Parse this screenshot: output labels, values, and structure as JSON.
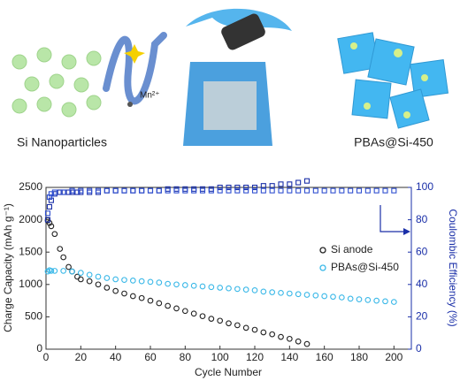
{
  "illustration": {
    "left_label": "Si Nanoparticles",
    "ion_label": "Mn²⁺",
    "right_label": "PBAs@Si-450"
  },
  "chart_data": {
    "type": "scatter",
    "xlabel": "Cycle Number",
    "ylabel": "Charge Capacity (mAh g⁻¹)",
    "y2label": "Coulombic Efficiency (%)",
    "xlim": [
      0,
      210
    ],
    "xticks": [
      0,
      20,
      40,
      60,
      80,
      100,
      120,
      140,
      160,
      180,
      200
    ],
    "ylim": [
      0,
      2500
    ],
    "yticks": [
      0,
      500,
      1000,
      1500,
      2000,
      2500
    ],
    "y2lim": [
      0,
      100
    ],
    "y2ticks": [
      0,
      20,
      40,
      60,
      80,
      100
    ],
    "legend": "right",
    "series": [
      {
        "name": "Si anode",
        "color": "#222222",
        "marker": "circle",
        "x": [
          1,
          2,
          3,
          5,
          8,
          10,
          13,
          15,
          18,
          20,
          25,
          30,
          35,
          40,
          45,
          50,
          55,
          60,
          65,
          70,
          75,
          80,
          85,
          90,
          95,
          100,
          105,
          110,
          115,
          120,
          125,
          130,
          135,
          140,
          145,
          150
        ],
        "values": [
          1990,
          1950,
          1900,
          1780,
          1550,
          1420,
          1270,
          1200,
          1120,
          1080,
          1050,
          1000,
          950,
          900,
          860,
          820,
          790,
          750,
          710,
          670,
          630,
          590,
          550,
          510,
          470,
          440,
          400,
          370,
          330,
          300,
          260,
          230,
          190,
          160,
          120,
          80
        ]
      },
      {
        "name": "PBAs@Si-450",
        "color": "#3ab8e8",
        "marker": "circle",
        "x": [
          1,
          2,
          3,
          5,
          10,
          15,
          20,
          25,
          30,
          35,
          40,
          45,
          50,
          55,
          60,
          65,
          70,
          75,
          80,
          85,
          90,
          95,
          100,
          105,
          110,
          115,
          120,
          125,
          130,
          135,
          140,
          145,
          150,
          155,
          160,
          165,
          170,
          175,
          180,
          185,
          190,
          195,
          200
        ],
        "values": [
          1200,
          1220,
          1210,
          1210,
          1210,
          1200,
          1180,
          1150,
          1120,
          1100,
          1080,
          1070,
          1060,
          1050,
          1040,
          1030,
          1010,
          1000,
          990,
          980,
          970,
          960,
          950,
          940,
          930,
          920,
          910,
          890,
          880,
          870,
          860,
          850,
          840,
          830,
          820,
          810,
          800,
          780,
          770,
          760,
          750,
          740,
          730
        ]
      },
      {
        "color": "#1a2fa8",
        "marker": "square",
        "axis": "y2",
        "x": [
          1,
          2,
          3,
          5,
          8,
          10,
          13,
          15,
          18,
          20,
          25,
          30,
          35,
          40,
          45,
          50,
          55,
          60,
          65,
          70,
          75,
          80,
          85,
          90,
          95,
          100,
          105,
          110,
          115,
          120,
          125,
          130,
          135,
          140,
          145,
          150
        ],
        "values": [
          80,
          88,
          92,
          96,
          97,
          97,
          97,
          97,
          97,
          97,
          97,
          97,
          98,
          98,
          98,
          98,
          98,
          98,
          98,
          99,
          99,
          99,
          99,
          99,
          99,
          100,
          100,
          100,
          100,
          100,
          101,
          101,
          102,
          102,
          103,
          104
        ]
      },
      {
        "color": "#3050d0",
        "marker": "square",
        "axis": "y2",
        "x": [
          1,
          2,
          3,
          5,
          10,
          15,
          20,
          25,
          30,
          35,
          40,
          45,
          50,
          55,
          60,
          65,
          70,
          75,
          80,
          85,
          90,
          95,
          100,
          105,
          110,
          115,
          120,
          125,
          130,
          135,
          140,
          145,
          150,
          155,
          160,
          165,
          170,
          175,
          180,
          185,
          190,
          195,
          200
        ],
        "values": [
          84,
          94,
          96,
          97,
          97,
          98,
          98,
          98,
          98,
          98,
          98,
          98,
          98,
          98,
          98,
          98,
          98,
          98,
          98,
          98,
          98,
          98,
          98,
          98,
          98,
          98,
          98,
          98,
          98,
          98,
          98,
          98,
          98,
          98,
          98,
          98,
          98,
          98,
          98,
          98,
          98,
          98,
          98
        ]
      }
    ]
  }
}
